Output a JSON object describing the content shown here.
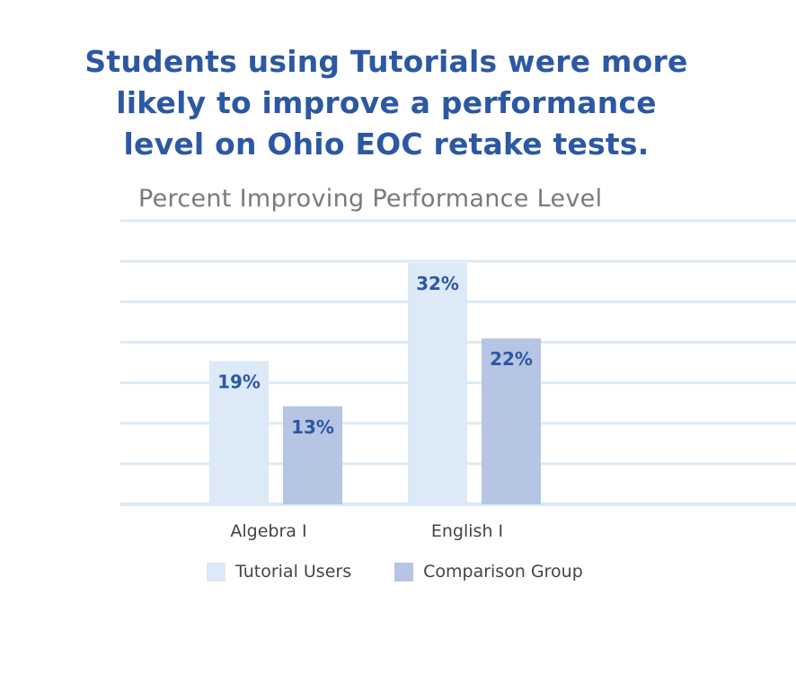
{
  "headline": {
    "lines": [
      "Students using Tutorials were more",
      "likely to improve a performance",
      "level on Ohio EOC retake tests."
    ]
  },
  "chart_data": {
    "type": "bar",
    "title": "Percent Improving Performance Level",
    "categories": [
      "Algebra I",
      "English I"
    ],
    "series": [
      {
        "name": "Tutorial Users",
        "values": [
          19,
          32
        ],
        "labels": [
          "19%",
          "32%"
        ],
        "color": "#dce9f7"
      },
      {
        "name": "Comparison Group",
        "values": [
          13,
          22
        ],
        "labels": [
          "13%",
          "22%"
        ],
        "color": "#b5c5e3"
      }
    ],
    "ylim": [
      0,
      35
    ],
    "grid": true,
    "gridColor": "#dce9f7",
    "labelColor": "#2c58a3",
    "legend_position": "bottom"
  }
}
